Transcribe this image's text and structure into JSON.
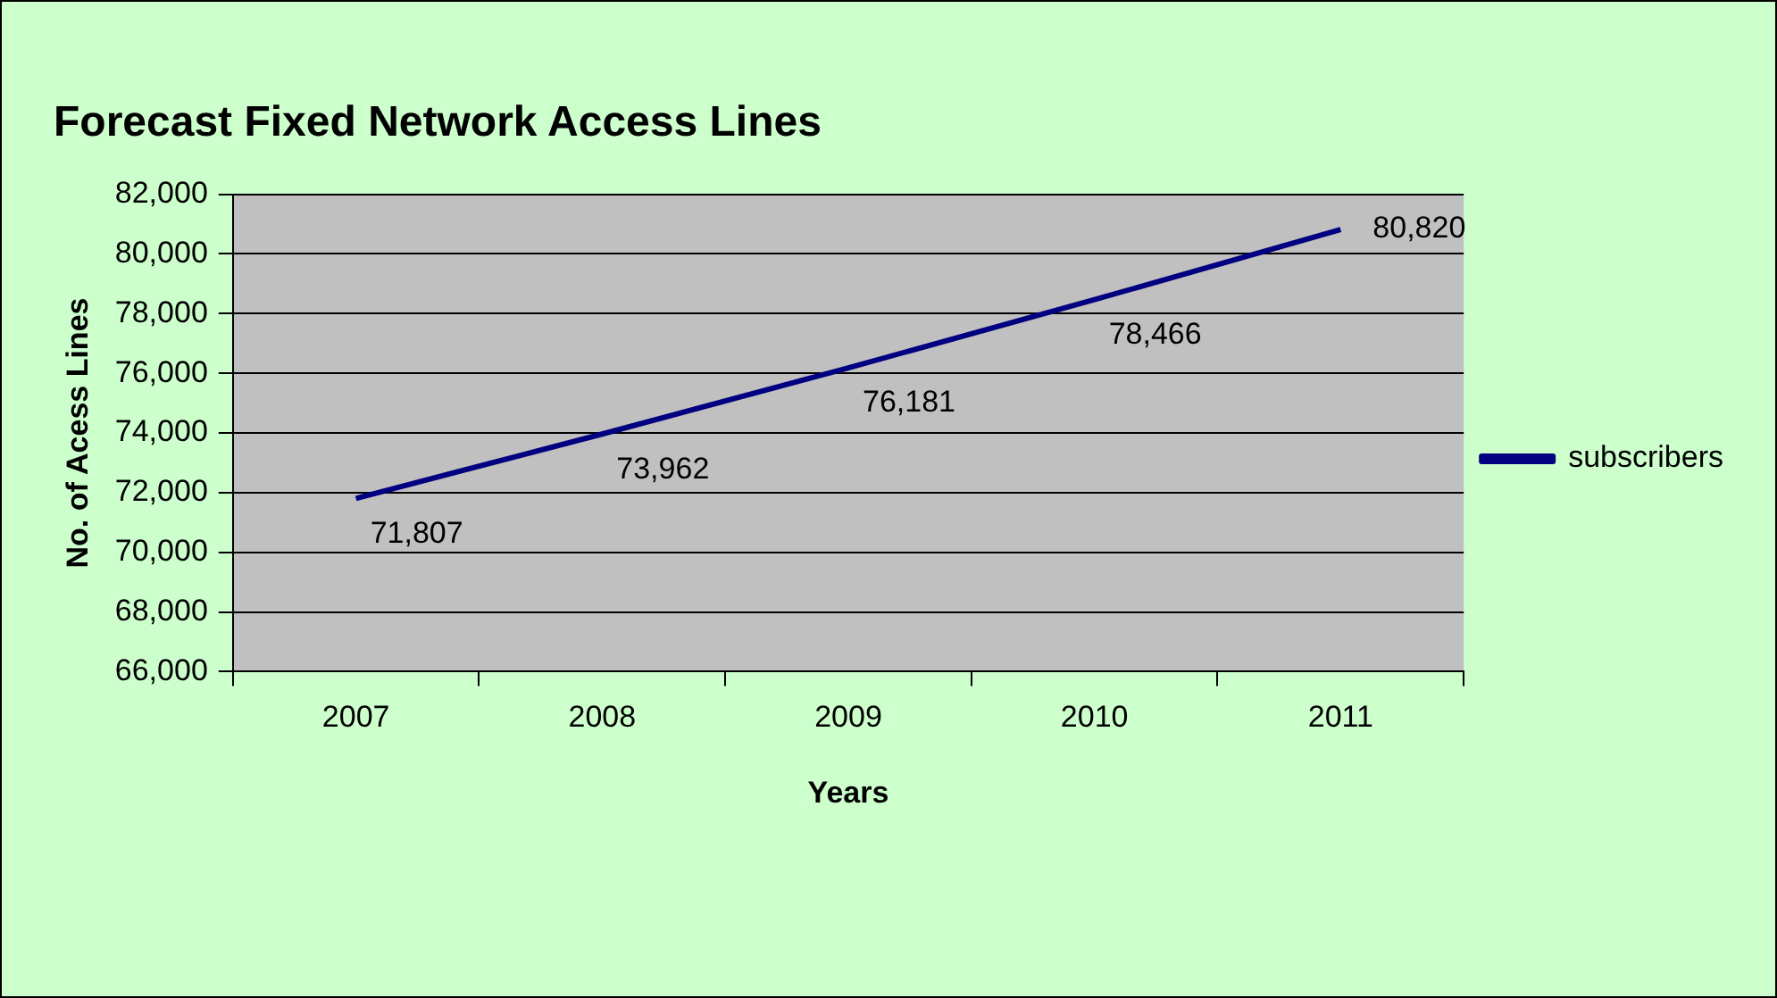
{
  "chart_data": {
    "type": "line",
    "title": "Forecast Fixed Network Access Lines",
    "xlabel": "Years",
    "ylabel": "No. of Acess Lines",
    "categories": [
      "2007",
      "2008",
      "2009",
      "2010",
      "2011"
    ],
    "series": [
      {
        "name": "subscribers",
        "color": "#000080",
        "values": [
          71807,
          73962,
          76181,
          78466,
          80820
        ],
        "value_labels": [
          "71,807",
          "73,962",
          "76,181",
          "78,466",
          "80,820"
        ]
      }
    ],
    "ylim": [
      66000,
      82000
    ],
    "yticks": [
      {
        "value": 66000,
        "label": "66,000"
      },
      {
        "value": 68000,
        "label": "68,000"
      },
      {
        "value": 70000,
        "label": "70,000"
      },
      {
        "value": 72000,
        "label": "72,000"
      },
      {
        "value": 74000,
        "label": "74,000"
      },
      {
        "value": 76000,
        "label": "76,000"
      },
      {
        "value": 78000,
        "label": "78,000"
      },
      {
        "value": 80000,
        "label": "80,000"
      },
      {
        "value": 82000,
        "label": "82,000"
      }
    ],
    "grid": "y",
    "legend": "right",
    "marker": "none"
  }
}
